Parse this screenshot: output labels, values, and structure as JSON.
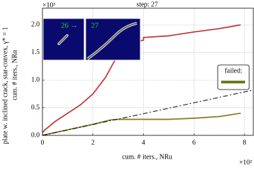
{
  "chart_data": {
    "type": "line",
    "title": "step:  27",
    "ylabel": [
      "plate w. inclined crack, star-convex, γ* = 1",
      "cum. # iters., NRα"
    ],
    "xlabel": "cum. # iters., NRu",
    "x_multiplier": "×10²",
    "y_multiplier": "×10³",
    "xlim": [
      0,
      8.35
    ],
    "ylim": [
      0,
      2.3
    ],
    "xticks": [
      0,
      2,
      4,
      6,
      8
    ],
    "yticks": [
      {
        "value": 0,
        "label": "0.0"
      },
      0.5,
      {
        "value": 1,
        "label": "1.0"
      },
      1.5,
      {
        "value": 2,
        "label": "2.0"
      }
    ],
    "grid": true,
    "series": [
      {
        "color": "#c0393b",
        "x": [
          0,
          0.1,
          0.5,
          1,
          1.5,
          2,
          2.5,
          2.8,
          3.1,
          3.3,
          4.0,
          4.0,
          5,
          6,
          7,
          7.5,
          7.85
        ],
        "values": [
          0.05,
          0.1,
          0.25,
          0.4,
          0.55,
          0.75,
          1.05,
          1.3,
          1.55,
          1.66,
          1.72,
          1.77,
          1.8,
          1.87,
          1.93,
          1.97,
          2.0
        ]
      },
      {
        "color": "#8a7a1e",
        "x": [
          0,
          1,
          2,
          2.7,
          3,
          5,
          6,
          7,
          7.85
        ],
        "values": [
          0,
          0.1,
          0.2,
          0.28,
          0.29,
          0.29,
          0.31,
          0.34,
          0.4
        ]
      },
      {
        "color": "#000000",
        "dash": "7 3 2 3",
        "x": [
          0,
          8.35
        ],
        "values": [
          0,
          0.82
        ]
      }
    ],
    "legend": {
      "title": "failed:",
      "color": "#6b7a1e"
    },
    "inset_labels": [
      "26 →",
      "27"
    ]
  }
}
